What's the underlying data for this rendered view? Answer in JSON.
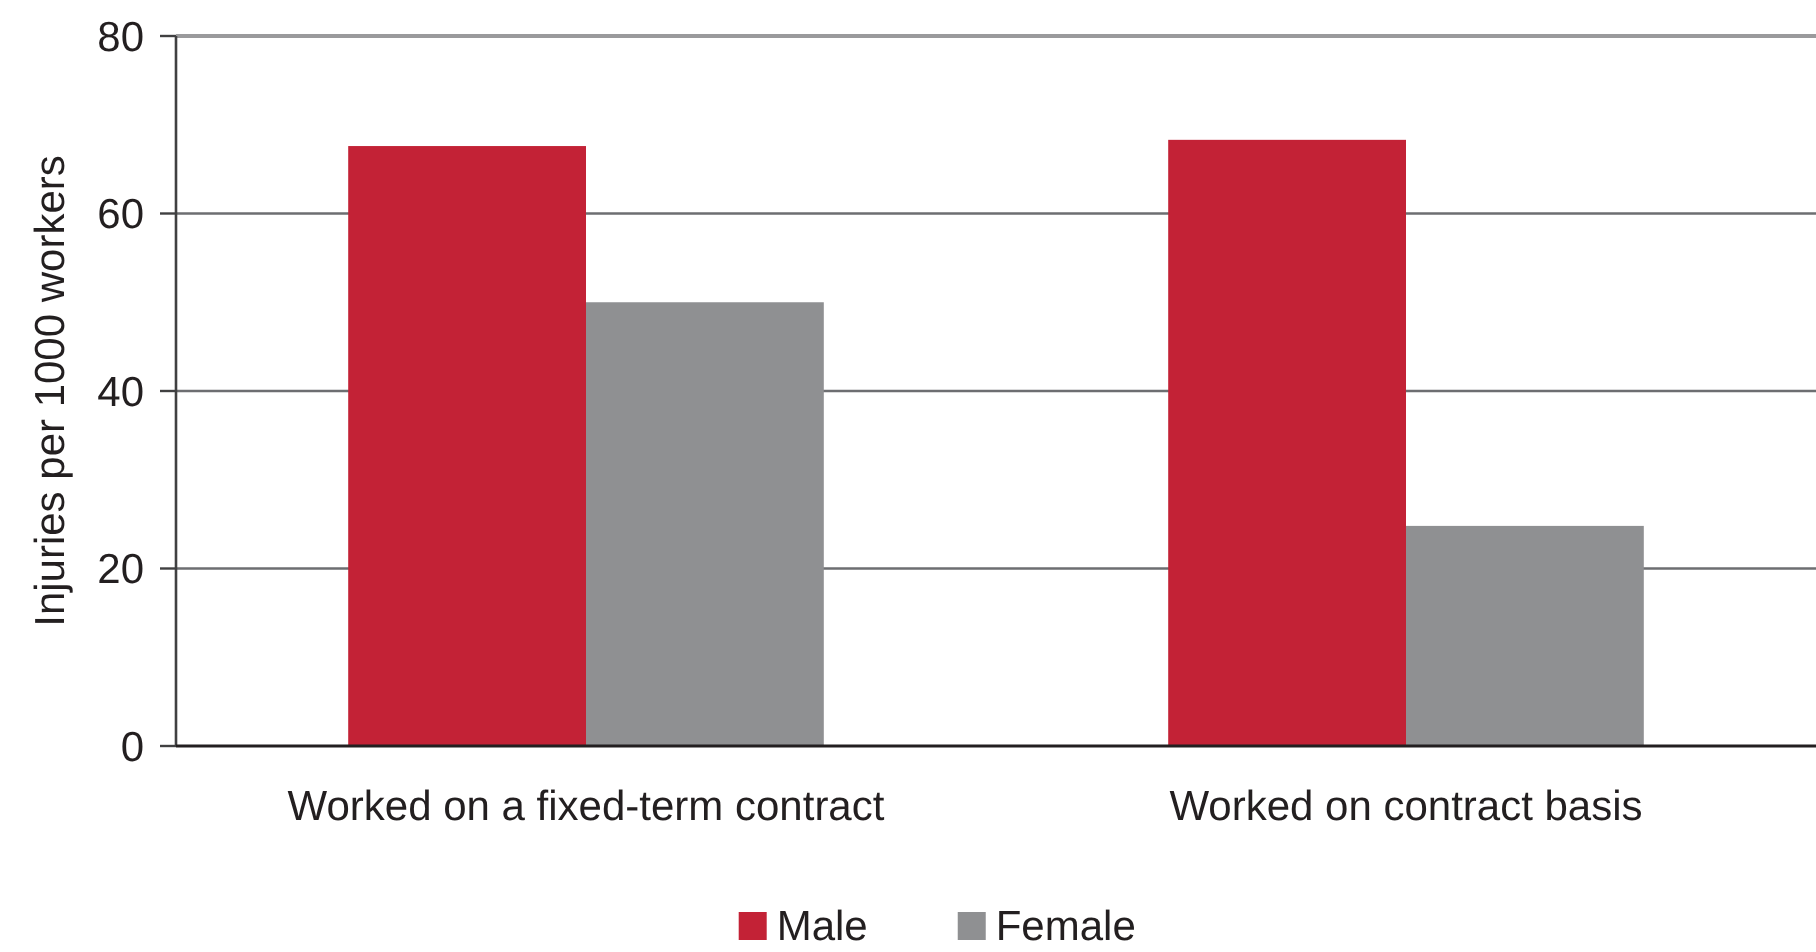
{
  "chart_data": {
    "type": "bar",
    "categories": [
      "Worked on a fixed-term contract",
      "Worked on contract basis"
    ],
    "series": [
      {
        "name": "Male",
        "color": "#c32236",
        "values": [
          67.6,
          68.3
        ]
      },
      {
        "name": "Female",
        "color": "#8f9092",
        "values": [
          50.0,
          24.8
        ]
      }
    ],
    "ylabel": "Injuries per 1000 workers",
    "ylim": [
      0,
      80
    ],
    "yticks": [
      0,
      20,
      40,
      60,
      80
    ],
    "grid": "y",
    "legend": "bottom"
  }
}
